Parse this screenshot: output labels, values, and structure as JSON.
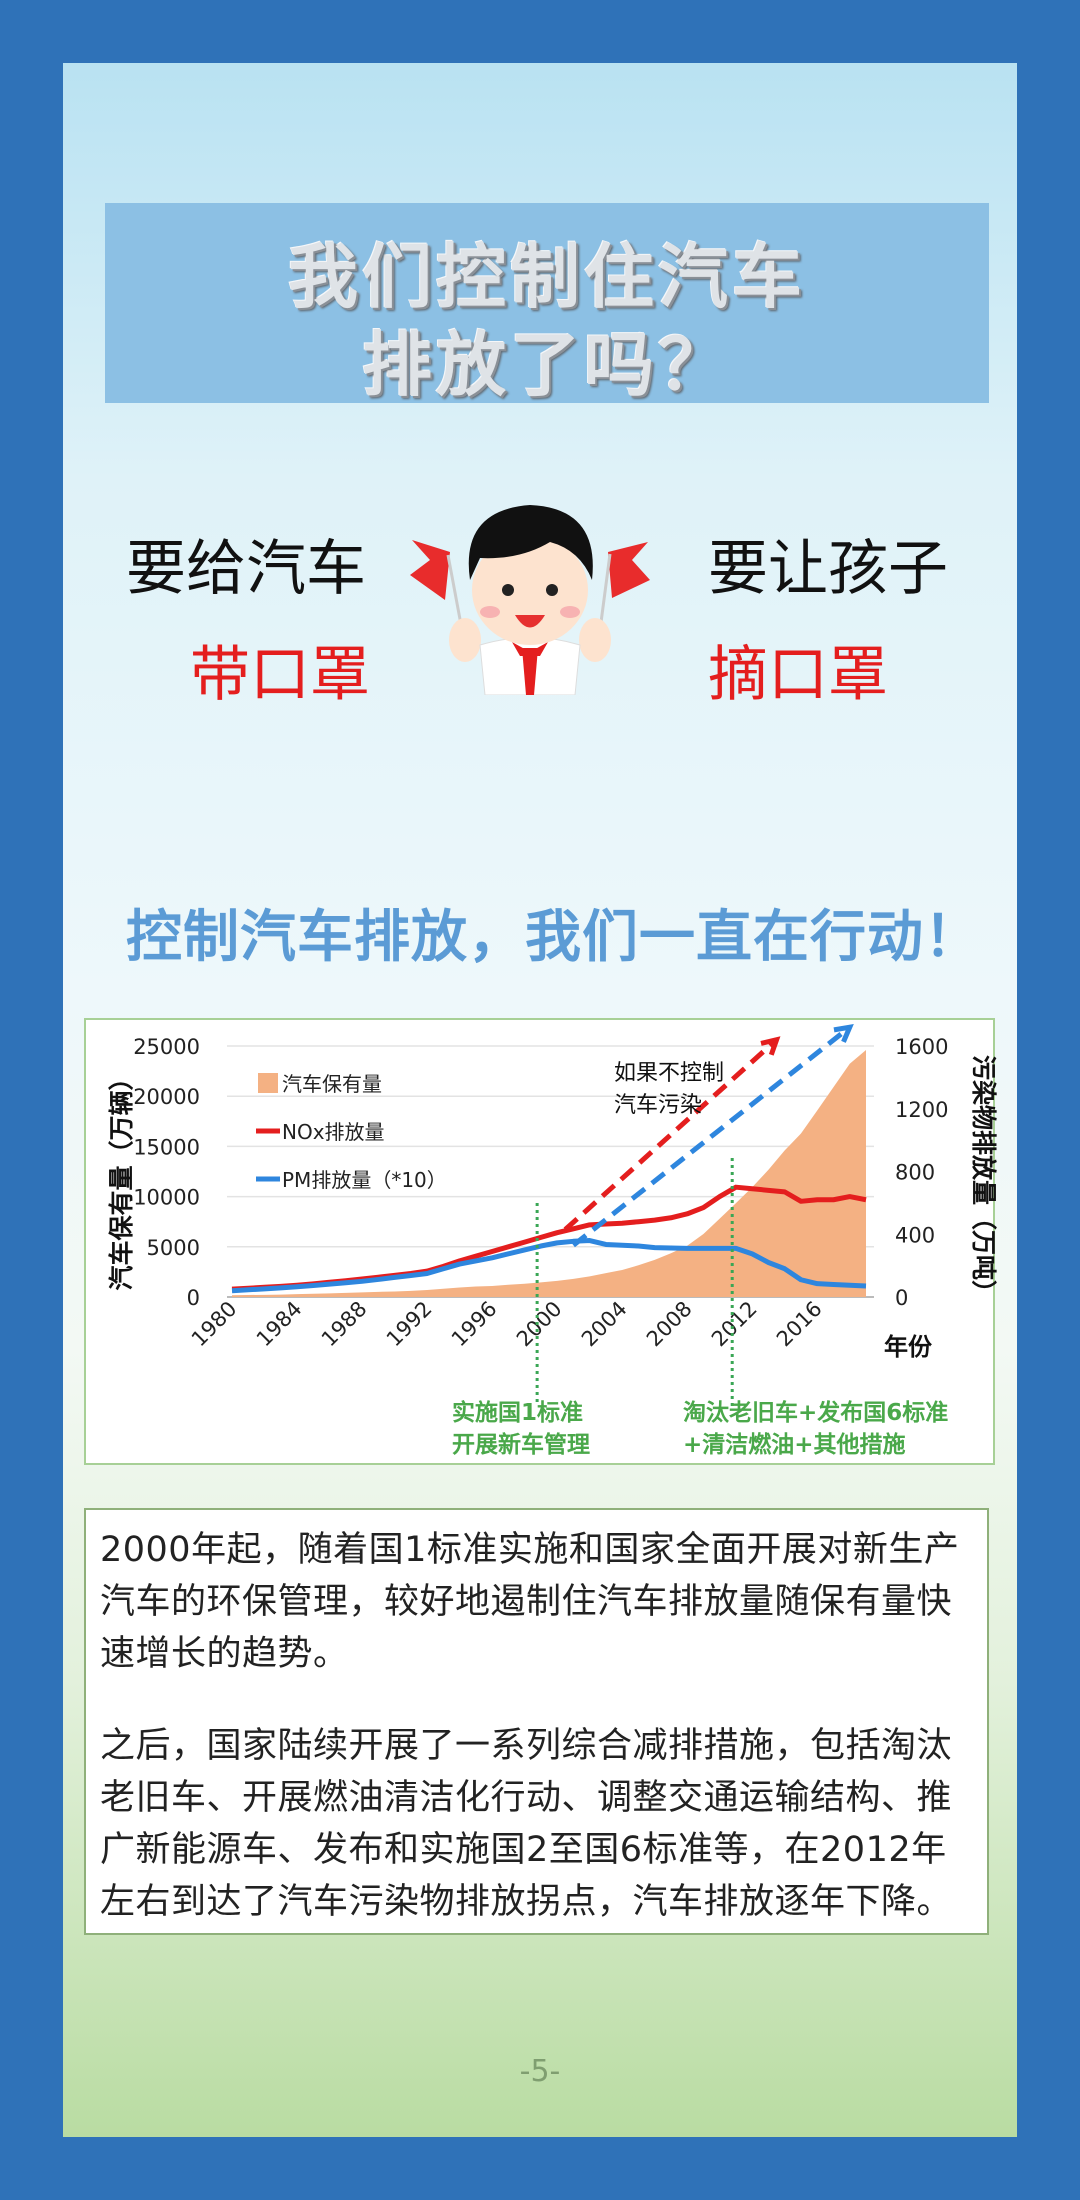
{
  "title": {
    "line1": "我们控制住汽车",
    "line2": "排放了吗？"
  },
  "slogan": {
    "left_top": "要给汽车",
    "left_bottom": "带口罩",
    "right_top": "要让孩子",
    "right_bottom": "摘口罩"
  },
  "illustration": {
    "icon": "boy-with-red-flags-icon"
  },
  "subheading": "控制汽车排放，我们一直在行动！",
  "colors": {
    "frame": "#2f72b8",
    "accent_blue": "#5b9bd5",
    "red": "#e41e1e",
    "green_note": "#4aa84a",
    "area": "#f4b183",
    "nox": "#e41e1e",
    "pm": "#2e86de"
  },
  "chart_data": {
    "type": "line",
    "x": [
      1980,
      1981,
      1982,
      1983,
      1984,
      1985,
      1986,
      1987,
      1988,
      1989,
      1990,
      1991,
      1992,
      1993,
      1994,
      1995,
      1996,
      1997,
      1998,
      1999,
      2000,
      2001,
      2002,
      2003,
      2004,
      2005,
      2006,
      2007,
      2008,
      2009,
      2010,
      2011,
      2012,
      2013,
      2014,
      2015,
      2016,
      2017,
      2018,
      2019
    ],
    "xticks": [
      "1980",
      "1984",
      "1988",
      "1992",
      "1996",
      "2000",
      "2004",
      "2008",
      "2012",
      "2016"
    ],
    "xlabel": "年份",
    "ylabel_left": "汽车保有量（万辆）",
    "ylabel_right": "污染物排放量（万吨）",
    "ylim_left": [
      0,
      25000
    ],
    "ylim_right": [
      0,
      1600
    ],
    "yticks_left": [
      "0",
      "5000",
      "10000",
      "15000",
      "20000",
      "25000"
    ],
    "yticks_right": [
      "0",
      "400",
      "800",
      "1200",
      "1600"
    ],
    "grid": true,
    "legend_placement": "top-left",
    "series": [
      {
        "name": "汽车保有量",
        "type": "area",
        "axis": "left",
        "values": [
          178,
          199,
          216,
          241,
          286,
          321,
          362,
          408,
          464,
          511,
          551,
          606,
          692,
          817,
          942,
          1040,
          1100,
          1219,
          1319,
          1453,
          1609,
          1802,
          2053,
          2383,
          2694,
          3160,
          3697,
          4358,
          5100,
          6280,
          7802,
          9356,
          10933,
          12670,
          14598,
          16284,
          18575,
          20907,
          23231,
          24600
        ]
      },
      {
        "name": "NOx排放量",
        "type": "line",
        "axis": "right",
        "values": [
          50,
          56,
          62,
          68,
          75,
          84,
          94,
          104,
          115,
          126,
          138,
          150,
          165,
          195,
          230,
          260,
          290,
          320,
          350,
          380,
          410,
          435,
          460,
          465,
          470,
          480,
          490,
          505,
          530,
          570,
          640,
          700,
          690,
          680,
          670,
          610,
          620,
          620,
          640,
          620
        ]
      },
      {
        "name": "PM排放量（*10）",
        "type": "line",
        "axis": "right",
        "values": [
          40,
          46,
          52,
          58,
          65,
          73,
          82,
          91,
          100,
          112,
          125,
          137,
          150,
          180,
          210,
          230,
          250,
          275,
          300,
          325,
          345,
          355,
          360,
          335,
          330,
          325,
          315,
          312,
          310,
          310,
          310,
          310,
          275,
          220,
          180,
          110,
          85,
          80,
          75,
          70
        ]
      }
    ],
    "annotations": {
      "projection_text": [
        "如果不控制",
        "汽车污染"
      ],
      "projection_arrows": [
        {
          "color": "#e41e1e",
          "from": [
            2000.5,
            430
          ],
          "to": [
            2013.5,
            1640
          ]
        },
        {
          "color": "#2e86de",
          "from": [
            2001,
            330
          ],
          "to": [
            2018,
            1720
          ]
        }
      ],
      "milestones": [
        {
          "year": 2000,
          "lines": [
            "实施国1标准",
            "开展新车管理"
          ]
        },
        {
          "year": 2012,
          "lines": [
            "淘汰老旧车+发布国6标准",
            "+清洁燃油+其他措施"
          ]
        }
      ]
    }
  },
  "body_text": {
    "paragraph1": "2000年起，随着国1标准实施和国家全面开展对新生产汽车的环保管理，较好地遏制住汽车排放量随保有量快速增长的趋势。",
    "paragraph2": "之后，国家陆续开展了一系列综合减排措施，包括淘汰老旧车、开展燃油清洁化行动、调整交通运输结构、推广新能源车、发布和实施国2至国6标准等，在2012年左右到达了汽车污染物排放拐点，汽车排放逐年下降。"
  },
  "page_number": "-5-"
}
